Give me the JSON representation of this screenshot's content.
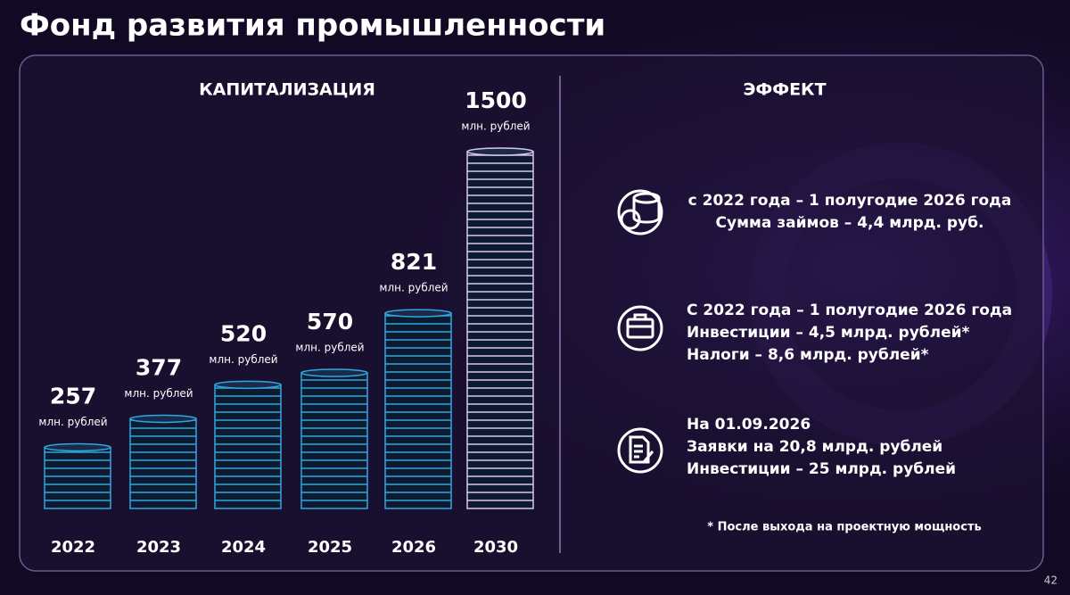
{
  "title": "Фонд развития промышленности",
  "page_number": "42",
  "chart_data": {
    "type": "bar",
    "title": "КАПИТАЛИЗАЦИЯ",
    "categories": [
      "2022",
      "2023",
      "2024",
      "2025",
      "2026",
      "2030"
    ],
    "values": [
      257,
      377,
      520,
      570,
      821,
      1500
    ],
    "unit_label": "млн. рублей",
    "colors": [
      "#2fa8e0",
      "#2fa8e0",
      "#2fa8e0",
      "#2fa8e0",
      "#2fa8e0",
      "#d8c8f0"
    ]
  },
  "effect": {
    "title": "ЭФФЕКТ",
    "items": [
      {
        "lines": [
          "с 2022 года – 1 полугодие 2026 года",
          "Сумма займов – 4,4 млрд. руб."
        ]
      },
      {
        "lines": [
          "С 2022 года – 1 полугодие 2026 года",
          "Инвестиции – 4,5 млрд. рублей*",
          "Налоги – 8,6 млрд. рублей*"
        ]
      },
      {
        "lines": [
          "На 01.09.2026",
          "Заявки на 20,8 млрд. рублей",
          "Инвестиции – 25 млрд. рублей"
        ]
      }
    ],
    "footnote": "* После выхода на проектную мощность"
  }
}
